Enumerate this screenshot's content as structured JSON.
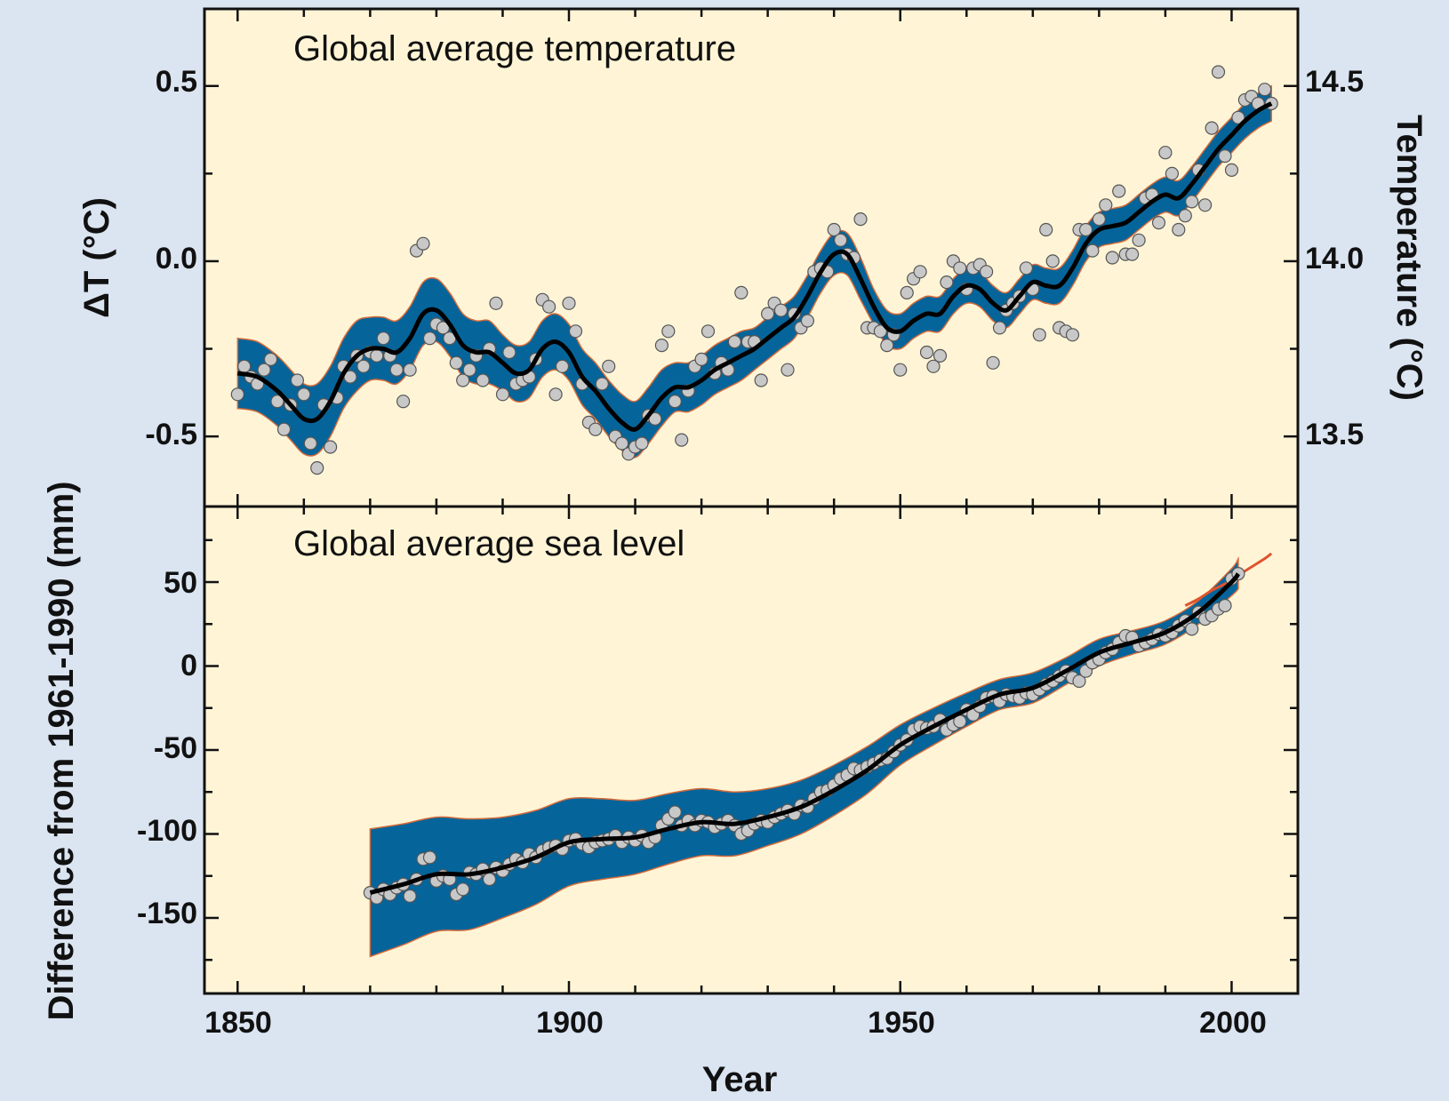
{
  "colors": {
    "background": "#dbe4f1",
    "plot_background": "#fff5d6",
    "uncertainty_band": "#05659b",
    "band_edge": "#d46a3a",
    "smoothed_line": "#000000",
    "annual_points_fill": "#c8c8c8",
    "satellite_line": "#e0522e"
  },
  "chart_data": [
    {
      "type": "line",
      "title": "Global average temperature",
      "xlabel": "Year",
      "ylabel": "ΔT (°C)",
      "ylabel_right": "Temperature (°C)",
      "xlim": [
        1845,
        2010
      ],
      "ylim": [
        -0.7,
        0.72
      ],
      "x_ticks": [
        1850,
        1900,
        1950,
        2000
      ],
      "x_tick_labels": [
        "1850",
        "1900",
        "1950",
        "2000"
      ],
      "y_ticks": [
        0.5,
        0.0,
        -0.5
      ],
      "y_tick_labels": [
        "0.5",
        "0.0",
        "-0.5"
      ],
      "y_right_ticks": [
        0.5,
        0.0,
        -0.5
      ],
      "y_right_tick_labels": [
        "14.5",
        "14.0",
        "13.5"
      ],
      "smoothed": {
        "x": [
          1850,
          1853,
          1856,
          1858,
          1860,
          1862,
          1864,
          1866,
          1868,
          1870,
          1872,
          1874,
          1876,
          1878,
          1880,
          1882,
          1884,
          1886,
          1888,
          1890,
          1892,
          1894,
          1896,
          1898,
          1900,
          1902,
          1904,
          1906,
          1908,
          1910,
          1912,
          1914,
          1916,
          1918,
          1920,
          1922,
          1924,
          1926,
          1928,
          1930,
          1932,
          1934,
          1936,
          1938,
          1940,
          1942,
          1944,
          1946,
          1948,
          1950,
          1952,
          1954,
          1956,
          1958,
          1960,
          1962,
          1964,
          1966,
          1968,
          1970,
          1972,
          1974,
          1976,
          1978,
          1980,
          1982,
          1984,
          1986,
          1988,
          1990,
          1992,
          1994,
          1996,
          1998,
          2000,
          2002,
          2004,
          2006
        ],
        "y": [
          -0.32,
          -0.33,
          -0.37,
          -0.41,
          -0.45,
          -0.45,
          -0.4,
          -0.32,
          -0.27,
          -0.25,
          -0.25,
          -0.26,
          -0.22,
          -0.15,
          -0.14,
          -0.18,
          -0.24,
          -0.26,
          -0.26,
          -0.29,
          -0.32,
          -0.31,
          -0.25,
          -0.23,
          -0.26,
          -0.33,
          -0.37,
          -0.42,
          -0.46,
          -0.48,
          -0.44,
          -0.39,
          -0.36,
          -0.36,
          -0.34,
          -0.31,
          -0.29,
          -0.27,
          -0.25,
          -0.22,
          -0.19,
          -0.16,
          -0.1,
          -0.03,
          0.02,
          0.02,
          -0.05,
          -0.13,
          -0.19,
          -0.2,
          -0.17,
          -0.15,
          -0.15,
          -0.1,
          -0.07,
          -0.08,
          -0.12,
          -0.14,
          -0.1,
          -0.06,
          -0.07,
          -0.07,
          -0.02,
          0.05,
          0.09,
          0.1,
          0.11,
          0.14,
          0.17,
          0.19,
          0.18,
          0.22,
          0.27,
          0.32,
          0.36,
          0.4,
          0.43,
          0.45
        ],
        "band_halfwidth": [
          0.1,
          0.1,
          0.1,
          0.1,
          0.1,
          0.1,
          0.1,
          0.1,
          0.1,
          0.09,
          0.09,
          0.09,
          0.09,
          0.09,
          0.09,
          0.09,
          0.09,
          0.09,
          0.09,
          0.08,
          0.08,
          0.08,
          0.08,
          0.08,
          0.08,
          0.08,
          0.08,
          0.08,
          0.08,
          0.08,
          0.08,
          0.08,
          0.07,
          0.07,
          0.07,
          0.07,
          0.07,
          0.07,
          0.06,
          0.06,
          0.06,
          0.06,
          0.06,
          0.06,
          0.06,
          0.06,
          0.06,
          0.05,
          0.05,
          0.05,
          0.05,
          0.05,
          0.05,
          0.05,
          0.05,
          0.05,
          0.05,
          0.05,
          0.05,
          0.05,
          0.05,
          0.05,
          0.05,
          0.05,
          0.05,
          0.05,
          0.05,
          0.05,
          0.05,
          0.05,
          0.05,
          0.05,
          0.05,
          0.05,
          0.05,
          0.05,
          0.05,
          0.05
        ]
      },
      "annual": {
        "x": [
          1850,
          1851,
          1852,
          1853,
          1854,
          1855,
          1856,
          1857,
          1858,
          1859,
          1860,
          1861,
          1862,
          1863,
          1864,
          1865,
          1866,
          1867,
          1868,
          1869,
          1870,
          1871,
          1872,
          1873,
          1874,
          1875,
          1876,
          1877,
          1878,
          1879,
          1880,
          1881,
          1882,
          1883,
          1884,
          1885,
          1886,
          1887,
          1888,
          1889,
          1890,
          1891,
          1892,
          1893,
          1894,
          1895,
          1896,
          1897,
          1898,
          1899,
          1900,
          1901,
          1902,
          1903,
          1904,
          1905,
          1906,
          1907,
          1908,
          1909,
          1910,
          1911,
          1912,
          1913,
          1914,
          1915,
          1916,
          1917,
          1918,
          1919,
          1920,
          1921,
          1922,
          1923,
          1924,
          1925,
          1926,
          1927,
          1928,
          1929,
          1930,
          1931,
          1932,
          1933,
          1934,
          1935,
          1936,
          1937,
          1938,
          1939,
          1940,
          1941,
          1942,
          1943,
          1944,
          1945,
          1946,
          1947,
          1948,
          1949,
          1950,
          1951,
          1952,
          1953,
          1954,
          1955,
          1956,
          1957,
          1958,
          1959,
          1960,
          1961,
          1962,
          1963,
          1964,
          1965,
          1966,
          1967,
          1968,
          1969,
          1970,
          1971,
          1972,
          1973,
          1974,
          1975,
          1976,
          1977,
          1978,
          1979,
          1980,
          1981,
          1982,
          1983,
          1984,
          1985,
          1986,
          1987,
          1988,
          1989,
          1990,
          1991,
          1992,
          1993,
          1994,
          1995,
          1996,
          1997,
          1998,
          1999,
          2000,
          2001,
          2002,
          2003,
          2004,
          2005,
          2006
        ],
        "y": [
          -0.38,
          -0.3,
          -0.33,
          -0.35,
          -0.31,
          -0.28,
          -0.4,
          -0.48,
          -0.41,
          -0.34,
          -0.38,
          -0.52,
          -0.59,
          -0.41,
          -0.53,
          -0.39,
          -0.3,
          -0.33,
          -0.27,
          -0.3,
          -0.26,
          -0.27,
          -0.22,
          -0.27,
          -0.31,
          -0.4,
          -0.31,
          0.03,
          0.05,
          -0.22,
          -0.18,
          -0.19,
          -0.22,
          -0.29,
          -0.34,
          -0.31,
          -0.27,
          -0.34,
          -0.25,
          -0.12,
          -0.38,
          -0.26,
          -0.35,
          -0.34,
          -0.33,
          -0.28,
          -0.11,
          -0.13,
          -0.38,
          -0.3,
          -0.12,
          -0.2,
          -0.35,
          -0.46,
          -0.48,
          -0.35,
          -0.3,
          -0.5,
          -0.52,
          -0.55,
          -0.53,
          -0.52,
          -0.44,
          -0.45,
          -0.24,
          -0.2,
          -0.4,
          -0.51,
          -0.37,
          -0.3,
          -0.28,
          -0.2,
          -0.32,
          -0.29,
          -0.31,
          -0.23,
          -0.09,
          -0.23,
          -0.23,
          -0.34,
          -0.15,
          -0.12,
          -0.14,
          -0.31,
          -0.15,
          -0.19,
          -0.17,
          -0.03,
          -0.02,
          -0.03,
          0.09,
          0.06,
          0.02,
          0.01,
          0.12,
          -0.19,
          -0.19,
          -0.2,
          -0.24,
          -0.21,
          -0.31,
          -0.09,
          -0.05,
          -0.03,
          -0.26,
          -0.3,
          -0.27,
          -0.06,
          0.0,
          -0.02,
          -0.08,
          -0.02,
          -0.01,
          -0.03,
          -0.29,
          -0.19,
          -0.14,
          -0.12,
          -0.1,
          -0.02,
          -0.08,
          -0.21,
          0.09,
          0.0,
          -0.19,
          -0.2,
          -0.21,
          0.09,
          0.09,
          0.03,
          0.12,
          0.16,
          0.01,
          0.2,
          0.02,
          0.02,
          0.06,
          0.18,
          0.19,
          0.11,
          0.31,
          0.25,
          0.09,
          0.13,
          0.17,
          0.26,
          0.16,
          0.38,
          0.54,
          0.3,
          0.26,
          0.41,
          0.46,
          0.47,
          0.45,
          0.49,
          0.45
        ]
      }
    },
    {
      "type": "line",
      "title": "Global average sea level",
      "xlabel": "Year",
      "ylabel": "Difference from 1961-1990 (mm)",
      "xlim": [
        1845,
        2010
      ],
      "ylim": [
        -195,
        95
      ],
      "x_ticks": [
        1850,
        1900,
        1950,
        2000
      ],
      "x_tick_labels": [
        "1850",
        "1900",
        "1950",
        "2000"
      ],
      "y_ticks": [
        50,
        0,
        -50,
        -100,
        -150
      ],
      "y_tick_labels": [
        "50",
        "0",
        "-50",
        "-100",
        "-150"
      ],
      "smoothed": {
        "x": [
          1870,
          1875,
          1880,
          1885,
          1890,
          1895,
          1900,
          1905,
          1910,
          1915,
          1920,
          1925,
          1930,
          1935,
          1940,
          1945,
          1950,
          1955,
          1960,
          1965,
          1970,
          1975,
          1980,
          1985,
          1990,
          1995,
          2000,
          2001
        ],
        "y": [
          -135,
          -130,
          -124,
          -124,
          -120,
          -114,
          -105,
          -103,
          -102,
          -97,
          -93,
          -94,
          -90,
          -84,
          -74,
          -62,
          -47,
          -36,
          -26,
          -17,
          -13,
          -3,
          8,
          14,
          20,
          32,
          50,
          55
        ],
        "band_halfwidth": [
          38,
          36,
          34,
          33,
          30,
          28,
          26,
          24,
          22,
          21,
          20,
          19,
          17,
          16,
          15,
          14,
          12,
          11,
          10,
          9,
          9,
          8,
          8,
          7,
          7,
          7,
          8,
          9
        ]
      },
      "annual": {
        "x": [
          1870,
          1871,
          1872,
          1873,
          1874,
          1875,
          1876,
          1877,
          1878,
          1879,
          1880,
          1881,
          1882,
          1883,
          1884,
          1885,
          1886,
          1887,
          1888,
          1889,
          1890,
          1891,
          1892,
          1893,
          1894,
          1895,
          1896,
          1897,
          1898,
          1899,
          1900,
          1901,
          1902,
          1903,
          1904,
          1905,
          1906,
          1907,
          1908,
          1909,
          1910,
          1911,
          1912,
          1913,
          1914,
          1915,
          1916,
          1917,
          1918,
          1919,
          1920,
          1921,
          1922,
          1923,
          1924,
          1925,
          1926,
          1927,
          1928,
          1929,
          1930,
          1931,
          1932,
          1933,
          1934,
          1935,
          1936,
          1937,
          1938,
          1939,
          1940,
          1941,
          1942,
          1943,
          1944,
          1945,
          1946,
          1947,
          1948,
          1949,
          1950,
          1951,
          1952,
          1953,
          1954,
          1955,
          1956,
          1957,
          1958,
          1959,
          1960,
          1961,
          1962,
          1963,
          1964,
          1965,
          1966,
          1967,
          1968,
          1969,
          1970,
          1971,
          1972,
          1973,
          1974,
          1975,
          1976,
          1977,
          1978,
          1979,
          1980,
          1981,
          1982,
          1983,
          1984,
          1985,
          1986,
          1987,
          1988,
          1989,
          1990,
          1991,
          1992,
          1993,
          1994,
          1995,
          1996,
          1997,
          1998,
          1999,
          2000,
          2001
        ],
        "y": [
          -135,
          -138,
          -133,
          -136,
          -132,
          -130,
          -137,
          -127,
          -115,
          -114,
          -128,
          -125,
          -127,
          -136,
          -133,
          -123,
          -124,
          -121,
          -127,
          -120,
          -122,
          -118,
          -115,
          -117,
          -112,
          -114,
          -110,
          -108,
          -107,
          -109,
          -104,
          -103,
          -106,
          -108,
          -105,
          -104,
          -103,
          -101,
          -105,
          -102,
          -104,
          -101,
          -105,
          -102,
          -95,
          -91,
          -87,
          -95,
          -92,
          -95,
          -92,
          -93,
          -96,
          -94,
          -92,
          -95,
          -100,
          -98,
          -94,
          -92,
          -93,
          -90,
          -88,
          -86,
          -88,
          -83,
          -84,
          -79,
          -75,
          -74,
          -71,
          -67,
          -65,
          -61,
          -62,
          -60,
          -58,
          -56,
          -55,
          -51,
          -47,
          -44,
          -38,
          -36,
          -37,
          -36,
          -32,
          -38,
          -35,
          -33,
          -26,
          -29,
          -24,
          -19,
          -18,
          -21,
          -17,
          -18,
          -19,
          -16,
          -17,
          -14,
          -11,
          -9,
          -6,
          -3,
          -7,
          -9,
          -3,
          2,
          4,
          8,
          10,
          14,
          18,
          17,
          12,
          14,
          16,
          19,
          18,
          20,
          24,
          27,
          22,
          32,
          28,
          30,
          34,
          36,
          52,
          55
        ]
      },
      "satellite": {
        "x": [
          1993,
          1995,
          1997,
          1999,
          2001,
          2003,
          2005,
          2006
        ],
        "y": [
          36,
          40,
          45,
          49,
          54,
          59,
          64,
          67
        ]
      }
    }
  ]
}
